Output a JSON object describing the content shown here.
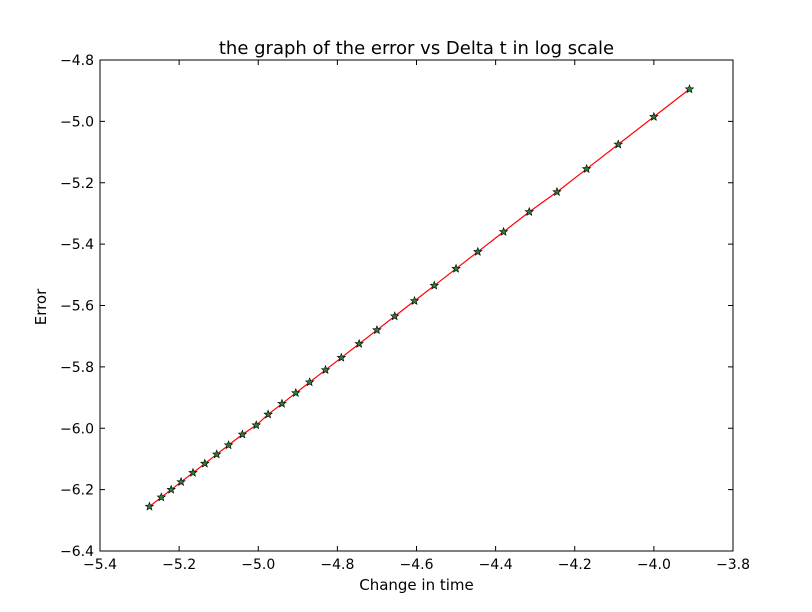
{
  "chart_data": {
    "type": "line",
    "title": "the graph of the error vs Delta t in log scale",
    "xlabel": "Change in time",
    "ylabel": "Error",
    "xlim": [
      -5.4,
      -3.8
    ],
    "ylim": [
      -6.4,
      -4.8
    ],
    "xticks": [
      -5.4,
      -5.2,
      -5.0,
      -4.8,
      -4.6,
      -4.4,
      -4.2,
      -4.0,
      -3.8
    ],
    "xtick_labels": [
      "−5.4",
      "−5.2",
      "−5.0",
      "−4.8",
      "−4.6",
      "−4.4",
      "−4.2",
      "−4.0",
      "−3.8"
    ],
    "yticks": [
      -6.4,
      -6.2,
      -6.0,
      -5.8,
      -5.6,
      -5.4,
      -5.2,
      -5.0,
      -4.8
    ],
    "ytick_labels": [
      "−6.4",
      "−6.2",
      "−6.0",
      "−5.8",
      "−5.6",
      "−5.4",
      "−5.2",
      "−5.0",
      "−4.8"
    ],
    "grid": false,
    "line_color": "#ff0000",
    "marker": "star",
    "marker_fill": "#2e7d32",
    "series": [
      {
        "x": [
          -5.275,
          -5.245,
          -5.22,
          -5.195,
          -5.165,
          -5.135,
          -5.105,
          -5.075,
          -5.04,
          -5.005,
          -4.975,
          -4.94,
          -4.905,
          -4.87,
          -4.83,
          -4.79,
          -4.745,
          -4.7,
          -4.655,
          -4.605,
          -4.555,
          -4.5,
          -4.445,
          -4.38,
          -4.315,
          -4.245,
          -4.17,
          -4.09,
          -4.0,
          -3.91
        ],
        "y": [
          -6.255,
          -6.225,
          -6.2,
          -6.175,
          -6.145,
          -6.115,
          -6.085,
          -6.055,
          -6.02,
          -5.99,
          -5.955,
          -5.92,
          -5.885,
          -5.85,
          -5.81,
          -5.77,
          -5.725,
          -5.68,
          -5.635,
          -5.585,
          -5.535,
          -5.48,
          -5.425,
          -5.36,
          -5.295,
          -5.23,
          -5.155,
          -5.075,
          -4.985,
          -4.895
        ]
      }
    ]
  }
}
